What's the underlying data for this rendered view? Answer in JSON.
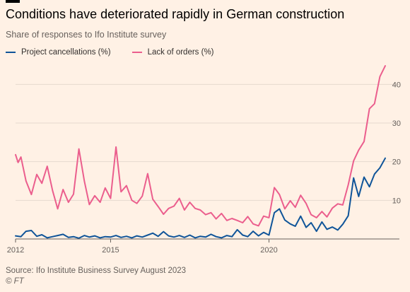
{
  "header": {
    "title": "Conditions have deteriorated rapidly in German construction",
    "subtitle": "Share of responses to Ifo Institute survey"
  },
  "footer": {
    "source": "Source: Ifo Institute Business Survey August 2023",
    "credit": "© FT"
  },
  "colors": {
    "background": "#fff1e5",
    "cancellations": "#0f5499",
    "orders": "#eb5e8d",
    "grid": "#e6d9ce",
    "axis": "#66605c"
  },
  "chart_data": {
    "type": "line",
    "title": "Conditions have deteriorated rapidly in German construction",
    "subtitle": "Share of responses to Ifo Institute survey",
    "xlabel": "",
    "ylabel": "",
    "xlim": [
      2012.0,
      2023.67
    ],
    "ylim": [
      0,
      45
    ],
    "x_ticks": [
      {
        "value": 2012,
        "label": "2012"
      },
      {
        "value": 2015,
        "label": "2015"
      },
      {
        "value": 2020,
        "label": "2020"
      }
    ],
    "y_ticks": [
      {
        "value": 10,
        "label": "10"
      },
      {
        "value": 20,
        "label": "20"
      },
      {
        "value": 30,
        "label": "30"
      },
      {
        "value": 40,
        "label": "40"
      }
    ],
    "grid": true,
    "legend_position": "top-left",
    "series": [
      {
        "name": "Project cancellations (%)",
        "color": "#0f5499",
        "points": [
          [
            2012.0,
            0.8
          ],
          [
            2012.17,
            0.6
          ],
          [
            2012.33,
            2.0
          ],
          [
            2012.5,
            2.2
          ],
          [
            2012.67,
            0.7
          ],
          [
            2012.83,
            1.1
          ],
          [
            2013.0,
            0.3
          ],
          [
            2013.17,
            0.6
          ],
          [
            2013.33,
            0.9
          ],
          [
            2013.5,
            1.2
          ],
          [
            2013.67,
            0.4
          ],
          [
            2013.83,
            0.6
          ],
          [
            2014.0,
            0.2
          ],
          [
            2014.17,
            0.9
          ],
          [
            2014.33,
            0.5
          ],
          [
            2014.5,
            0.8
          ],
          [
            2014.67,
            0.3
          ],
          [
            2014.83,
            0.6
          ],
          [
            2015.0,
            0.5
          ],
          [
            2015.17,
            0.9
          ],
          [
            2015.33,
            0.4
          ],
          [
            2015.5,
            0.7
          ],
          [
            2015.67,
            0.3
          ],
          [
            2015.83,
            0.8
          ],
          [
            2016.0,
            0.5
          ],
          [
            2016.17,
            1.0
          ],
          [
            2016.33,
            1.5
          ],
          [
            2016.5,
            0.7
          ],
          [
            2016.67,
            1.9
          ],
          [
            2016.83,
            0.8
          ],
          [
            2017.0,
            0.5
          ],
          [
            2017.17,
            0.9
          ],
          [
            2017.33,
            0.4
          ],
          [
            2017.5,
            1.0
          ],
          [
            2017.67,
            0.3
          ],
          [
            2017.83,
            0.7
          ],
          [
            2018.0,
            0.5
          ],
          [
            2018.17,
            1.2
          ],
          [
            2018.33,
            0.6
          ],
          [
            2018.5,
            0.3
          ],
          [
            2018.67,
            0.9
          ],
          [
            2018.83,
            0.6
          ],
          [
            2019.0,
            2.4
          ],
          [
            2019.17,
            1.0
          ],
          [
            2019.33,
            0.6
          ],
          [
            2019.5,
            2.0
          ],
          [
            2019.67,
            0.8
          ],
          [
            2019.83,
            1.7
          ],
          [
            2020.0,
            1.0
          ],
          [
            2020.17,
            6.8
          ],
          [
            2020.33,
            7.8
          ],
          [
            2020.5,
            4.9
          ],
          [
            2020.67,
            3.9
          ],
          [
            2020.83,
            3.3
          ],
          [
            2021.0,
            5.9
          ],
          [
            2021.17,
            3.0
          ],
          [
            2021.33,
            4.2
          ],
          [
            2021.5,
            2.0
          ],
          [
            2021.67,
            4.4
          ],
          [
            2021.83,
            2.5
          ],
          [
            2022.0,
            3.1
          ],
          [
            2022.17,
            2.3
          ],
          [
            2022.33,
            3.8
          ],
          [
            2022.5,
            6.0
          ],
          [
            2022.67,
            15.8
          ],
          [
            2022.83,
            11.0
          ],
          [
            2023.0,
            16.0
          ],
          [
            2023.17,
            13.5
          ],
          [
            2023.33,
            16.8
          ],
          [
            2023.5,
            18.4
          ],
          [
            2023.67,
            20.9
          ]
        ]
      },
      {
        "name": "Lack of orders (%)",
        "color": "#eb5e8d",
        "points": [
          [
            2012.0,
            21.8
          ],
          [
            2012.08,
            19.8
          ],
          [
            2012.17,
            21.2
          ],
          [
            2012.33,
            15.0
          ],
          [
            2012.5,
            11.5
          ],
          [
            2012.67,
            16.7
          ],
          [
            2012.83,
            14.4
          ],
          [
            2013.0,
            18.8
          ],
          [
            2013.17,
            12.5
          ],
          [
            2013.33,
            7.8
          ],
          [
            2013.5,
            12.8
          ],
          [
            2013.67,
            9.5
          ],
          [
            2013.83,
            11.6
          ],
          [
            2014.0,
            23.3
          ],
          [
            2014.17,
            15.0
          ],
          [
            2014.33,
            8.9
          ],
          [
            2014.5,
            11.2
          ],
          [
            2014.67,
            9.5
          ],
          [
            2014.83,
            13.2
          ],
          [
            2015.0,
            10.5
          ],
          [
            2015.17,
            23.8
          ],
          [
            2015.33,
            12.2
          ],
          [
            2015.5,
            13.8
          ],
          [
            2015.67,
            10.0
          ],
          [
            2015.83,
            9.2
          ],
          [
            2016.0,
            11.1
          ],
          [
            2016.17,
            16.9
          ],
          [
            2016.33,
            10.3
          ],
          [
            2016.5,
            8.4
          ],
          [
            2016.67,
            6.4
          ],
          [
            2016.83,
            7.9
          ],
          [
            2017.0,
            8.5
          ],
          [
            2017.17,
            10.5
          ],
          [
            2017.33,
            7.5
          ],
          [
            2017.5,
            9.5
          ],
          [
            2017.67,
            7.9
          ],
          [
            2017.83,
            7.5
          ],
          [
            2018.0,
            6.3
          ],
          [
            2018.17,
            6.8
          ],
          [
            2018.33,
            5.2
          ],
          [
            2018.5,
            6.6
          ],
          [
            2018.67,
            4.8
          ],
          [
            2018.83,
            5.3
          ],
          [
            2019.0,
            4.8
          ],
          [
            2019.17,
            4.2
          ],
          [
            2019.33,
            5.8
          ],
          [
            2019.5,
            3.9
          ],
          [
            2019.67,
            3.4
          ],
          [
            2019.83,
            5.9
          ],
          [
            2020.0,
            5.5
          ],
          [
            2020.17,
            13.3
          ],
          [
            2020.33,
            11.5
          ],
          [
            2020.5,
            7.8
          ],
          [
            2020.67,
            9.9
          ],
          [
            2020.83,
            8.2
          ],
          [
            2021.0,
            11.3
          ],
          [
            2021.17,
            9.2
          ],
          [
            2021.33,
            6.3
          ],
          [
            2021.5,
            5.5
          ],
          [
            2021.67,
            7.1
          ],
          [
            2021.83,
            5.7
          ],
          [
            2022.0,
            8.0
          ],
          [
            2022.17,
            9.1
          ],
          [
            2022.33,
            8.8
          ],
          [
            2022.5,
            14.0
          ],
          [
            2022.67,
            20.2
          ],
          [
            2022.83,
            23.0
          ],
          [
            2023.0,
            25.2
          ],
          [
            2023.17,
            33.7
          ],
          [
            2023.33,
            35.0
          ],
          [
            2023.5,
            42.0
          ],
          [
            2023.67,
            44.8
          ]
        ]
      }
    ]
  }
}
